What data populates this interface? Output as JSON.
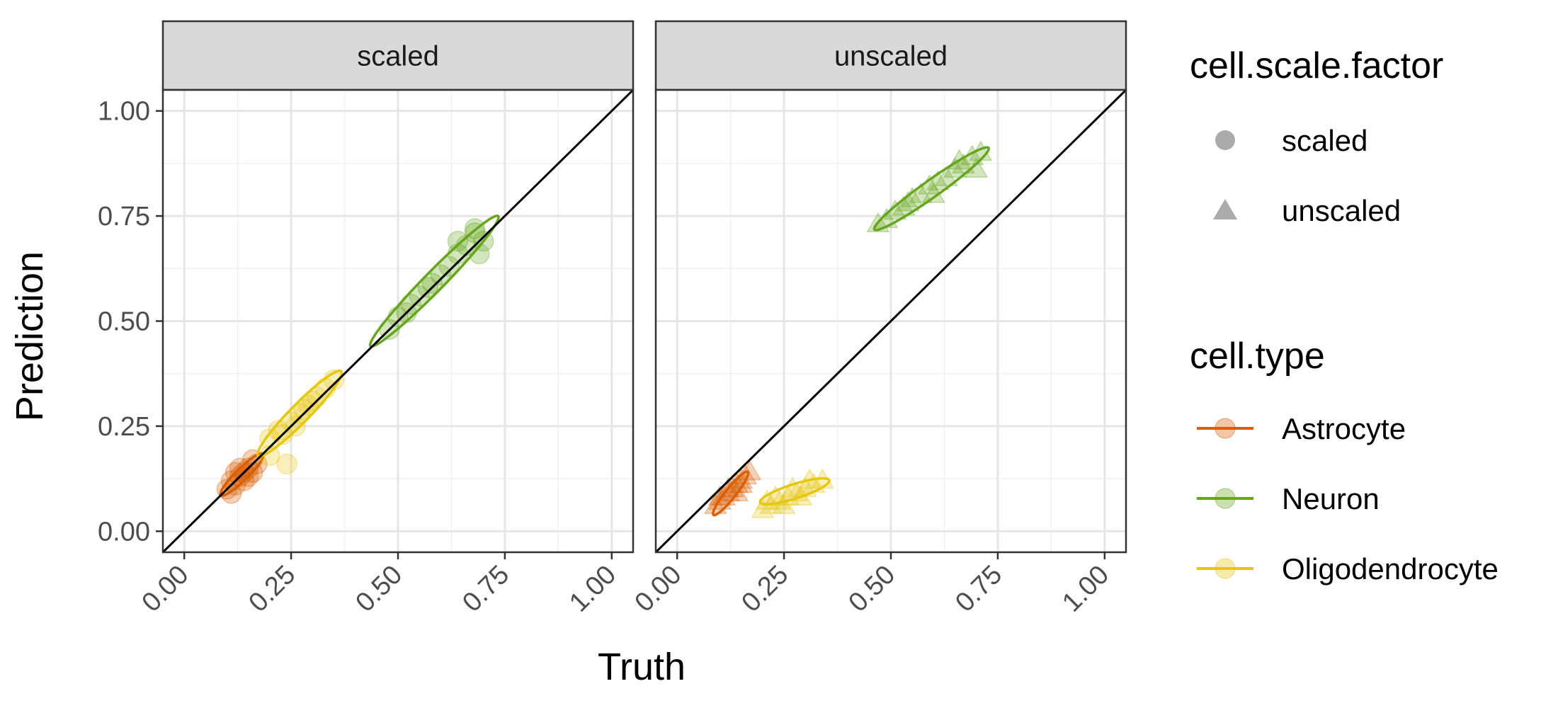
{
  "chart_data": {
    "type": "scatter",
    "xlabel": "Truth",
    "ylabel": "Prediction",
    "xlim": [
      -0.05,
      1.05
    ],
    "ylim": [
      -0.05,
      1.05
    ],
    "x_ticks": [
      "0.00",
      "0.25",
      "0.50",
      "0.75",
      "1.00"
    ],
    "y_ticks": [
      "0.00",
      "0.25",
      "0.50",
      "0.75",
      "1.00"
    ],
    "tick_values": [
      0,
      0.25,
      0.5,
      0.75,
      1.0
    ],
    "grid": true,
    "reference_line": "identity",
    "facets": [
      {
        "label": "scaled",
        "groups": [
          {
            "cell_type": "Astrocyte",
            "shape": "circle",
            "points": [
              [
                0.1,
                0.1
              ],
              [
                0.11,
                0.12
              ],
              [
                0.12,
                0.11
              ],
              [
                0.13,
                0.13
              ],
              [
                0.14,
                0.14
              ],
              [
                0.15,
                0.15
              ],
              [
                0.16,
                0.17
              ],
              [
                0.12,
                0.14
              ],
              [
                0.14,
                0.12
              ],
              [
                0.17,
                0.16
              ],
              [
                0.11,
                0.09
              ],
              [
                0.15,
                0.13
              ],
              [
                0.13,
                0.15
              ],
              [
                0.16,
                0.14
              ]
            ],
            "ellipse": {
              "center": [
                0.135,
                0.135
              ],
              "angle_deg": 45,
              "major": 0.07,
              "minor": 0.014
            }
          },
          {
            "cell_type": "Oligodendrocyte",
            "shape": "circle",
            "points": [
              [
                0.2,
                0.22
              ],
              [
                0.22,
                0.24
              ],
              [
                0.25,
                0.26
              ],
              [
                0.27,
                0.28
              ],
              [
                0.29,
                0.3
              ],
              [
                0.31,
                0.32
              ],
              [
                0.33,
                0.34
              ],
              [
                0.35,
                0.36
              ],
              [
                0.24,
                0.16
              ],
              [
                0.2,
                0.18
              ],
              [
                0.23,
                0.23
              ],
              [
                0.28,
                0.29
              ],
              [
                0.26,
                0.25
              ],
              [
                0.3,
                0.31
              ]
            ],
            "ellipse": {
              "center": [
                0.27,
                0.28
              ],
              "angle_deg": 46,
              "major": 0.14,
              "minor": 0.022
            }
          },
          {
            "cell_type": "Neuron",
            "shape": "circle",
            "points": [
              [
                0.48,
                0.48
              ],
              [
                0.5,
                0.51
              ],
              [
                0.52,
                0.52
              ],
              [
                0.55,
                0.56
              ],
              [
                0.57,
                0.58
              ],
              [
                0.6,
                0.61
              ],
              [
                0.62,
                0.63
              ],
              [
                0.64,
                0.66
              ],
              [
                0.66,
                0.68
              ],
              [
                0.68,
                0.71
              ],
              [
                0.69,
                0.66
              ],
              [
                0.64,
                0.69
              ],
              [
                0.58,
                0.59
              ],
              [
                0.53,
                0.54
              ],
              [
                0.68,
                0.72
              ],
              [
                0.7,
                0.69
              ]
            ],
            "ellipse": {
              "center": [
                0.585,
                0.595
              ],
              "angle_deg": 46,
              "major": 0.215,
              "minor": 0.023
            }
          }
        ]
      },
      {
        "label": "unscaled",
        "groups": [
          {
            "cell_type": "Astrocyte",
            "shape": "triangle",
            "points": [
              [
                0.09,
                0.06
              ],
              [
                0.1,
                0.07
              ],
              [
                0.11,
                0.08
              ],
              [
                0.12,
                0.09
              ],
              [
                0.13,
                0.1
              ],
              [
                0.14,
                0.11
              ],
              [
                0.15,
                0.12
              ],
              [
                0.16,
                0.13
              ],
              [
                0.17,
                0.14
              ],
              [
                0.12,
                0.1
              ],
              [
                0.14,
                0.09
              ],
              [
                0.1,
                0.08
              ],
              [
                0.15,
                0.11
              ]
            ],
            "ellipse": {
              "center": [
                0.125,
                0.09
              ],
              "angle_deg": 52,
              "major": 0.065,
              "minor": 0.012
            }
          },
          {
            "cell_type": "Oligodendrocyte",
            "shape": "triangle",
            "points": [
              [
                0.2,
                0.05
              ],
              [
                0.22,
                0.06
              ],
              [
                0.24,
                0.07
              ],
              [
                0.26,
                0.08
              ],
              [
                0.28,
                0.09
              ],
              [
                0.3,
                0.1
              ],
              [
                0.32,
                0.11
              ],
              [
                0.34,
                0.12
              ],
              [
                0.25,
                0.06
              ],
              [
                0.27,
                0.1
              ],
              [
                0.23,
                0.08
              ],
              [
                0.29,
                0.08
              ],
              [
                0.31,
                0.12
              ],
              [
                0.21,
                0.07
              ]
            ],
            "ellipse": {
              "center": [
                0.275,
                0.095
              ],
              "angle_deg": 18,
              "major": 0.085,
              "minor": 0.017
            }
          },
          {
            "cell_type": "Neuron",
            "shape": "triangle",
            "points": [
              [
                0.47,
                0.73
              ],
              [
                0.49,
                0.74
              ],
              [
                0.51,
                0.76
              ],
              [
                0.53,
                0.77
              ],
              [
                0.55,
                0.79
              ],
              [
                0.57,
                0.8
              ],
              [
                0.59,
                0.82
              ],
              [
                0.61,
                0.83
              ],
              [
                0.63,
                0.84
              ],
              [
                0.65,
                0.86
              ],
              [
                0.67,
                0.87
              ],
              [
                0.69,
                0.89
              ],
              [
                0.71,
                0.9
              ],
              [
                0.7,
                0.86
              ],
              [
                0.66,
                0.88
              ],
              [
                0.6,
                0.8
              ],
              [
                0.54,
                0.78
              ]
            ],
            "ellipse": {
              "center": [
                0.595,
                0.815
              ],
              "angle_deg": 36,
              "major": 0.165,
              "minor": 0.02
            }
          }
        ]
      }
    ],
    "legend": {
      "placement": "right",
      "shape_title": "cell.scale.factor",
      "shape_entries": [
        {
          "label": "scaled",
          "shape": "circle"
        },
        {
          "label": "unscaled",
          "shape": "triangle"
        }
      ],
      "color_title": "cell.type",
      "color_entries": [
        {
          "label": "Astrocyte",
          "color": "#d95f02"
        },
        {
          "label": "Neuron",
          "color": "#66a61e"
        },
        {
          "label": "Oligodendrocyte",
          "color": "#e6c60f"
        }
      ]
    },
    "colors": {
      "Astrocyte": "#d95f02",
      "Neuron": "#66a61e",
      "Oligodendrocyte": "#e6c60f",
      "strip_fill": "#d9d9d9",
      "legend_shape": "#ababab"
    }
  }
}
